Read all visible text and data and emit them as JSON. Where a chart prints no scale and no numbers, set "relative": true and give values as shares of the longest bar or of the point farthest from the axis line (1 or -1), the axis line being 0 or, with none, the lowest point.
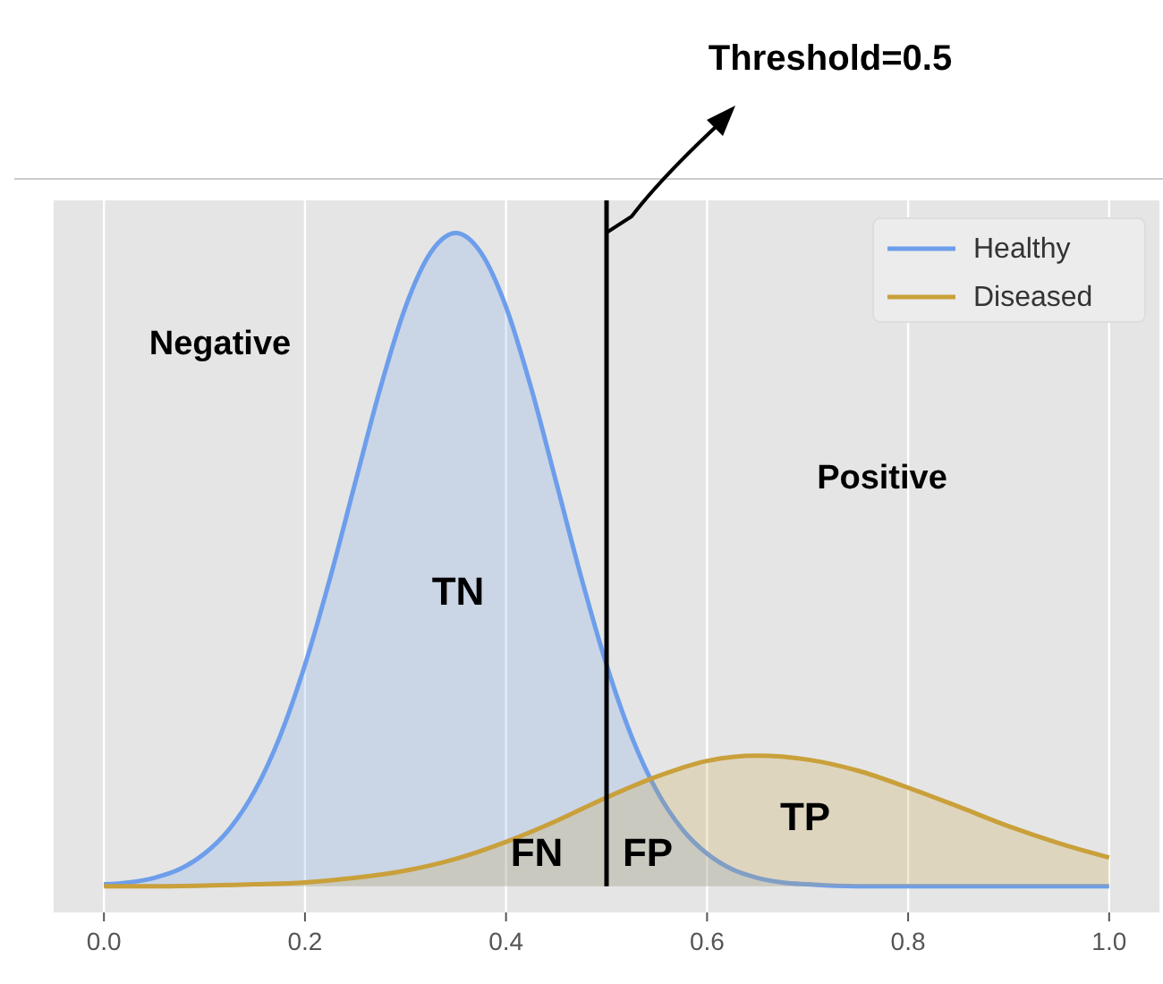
{
  "chart_data": {
    "type": "area",
    "relative": true,
    "xlim": [
      -0.05,
      1.05
    ],
    "xticks": [
      {
        "value": 0,
        "label": "0.0"
      },
      0.2,
      0.4,
      0.6,
      0.8,
      {
        "value": 1,
        "label": "1.0"
      }
    ],
    "grid": "x",
    "legend": "top right",
    "series": [
      {
        "name": "Healthy",
        "color": "#6d9eeb",
        "x": [
          0,
          0.025,
          0.05,
          0.075,
          0.1,
          0.125,
          0.15,
          0.175,
          0.2,
          0.225,
          0.25,
          0.275,
          0.3,
          0.325,
          0.35,
          0.375,
          0.4,
          0.425,
          0.45,
          0.475,
          0.5,
          0.525,
          0.55,
          0.575,
          0.6,
          0.625,
          0.65,
          0.675,
          0.7,
          0.75,
          0.8,
          0.9,
          1
        ],
        "values": [
          0.003,
          0.006,
          0.013,
          0.026,
          0.05,
          0.088,
          0.146,
          0.229,
          0.339,
          0.472,
          0.618,
          0.763,
          0.887,
          0.97,
          1,
          0.97,
          0.887,
          0.763,
          0.618,
          0.472,
          0.339,
          0.229,
          0.146,
          0.088,
          0.05,
          0.026,
          0.013,
          0.006,
          0.003,
          0,
          0,
          0,
          0
        ]
      },
      {
        "name": "Diseased",
        "color": "#c9a03a",
        "x": [
          0,
          0.05,
          0.1,
          0.15,
          0.2,
          0.25,
          0.3,
          0.35,
          0.4,
          0.45,
          0.5,
          0.55,
          0.6,
          0.65,
          0.7,
          0.75,
          0.8,
          0.85,
          0.9,
          0.95,
          1
        ],
        "values": [
          0,
          0,
          0.001,
          0.003,
          0.006,
          0.013,
          0.024,
          0.042,
          0.068,
          0.1,
          0.136,
          0.168,
          0.192,
          0.2,
          0.194,
          0.177,
          0.151,
          0.122,
          0.092,
          0.066,
          0.044
        ]
      }
    ],
    "ref_lines": [
      {
        "axis": "x",
        "value": 0.5,
        "label": "Threshold=0.5",
        "color": "#000000"
      }
    ],
    "annotations": [
      "Negative",
      "Positive",
      "TN",
      "FN",
      "FP",
      "TP"
    ]
  }
}
